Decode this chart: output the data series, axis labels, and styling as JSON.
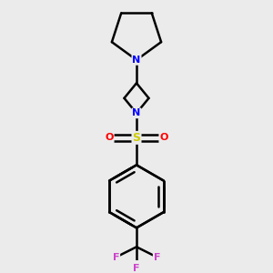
{
  "background_color": "#ebebeb",
  "bond_color": "#000000",
  "bond_width": 1.8,
  "N_color": "#0000ff",
  "O_color": "#ff0000",
  "S_color": "#cccc00",
  "F_color": "#cc44cc",
  "figsize": [
    3.0,
    3.0
  ],
  "dpi": 100,
  "font_size_atom": 9,
  "xlim": [
    -1.2,
    1.2
  ],
  "ylim": [
    -1.9,
    1.9
  ]
}
